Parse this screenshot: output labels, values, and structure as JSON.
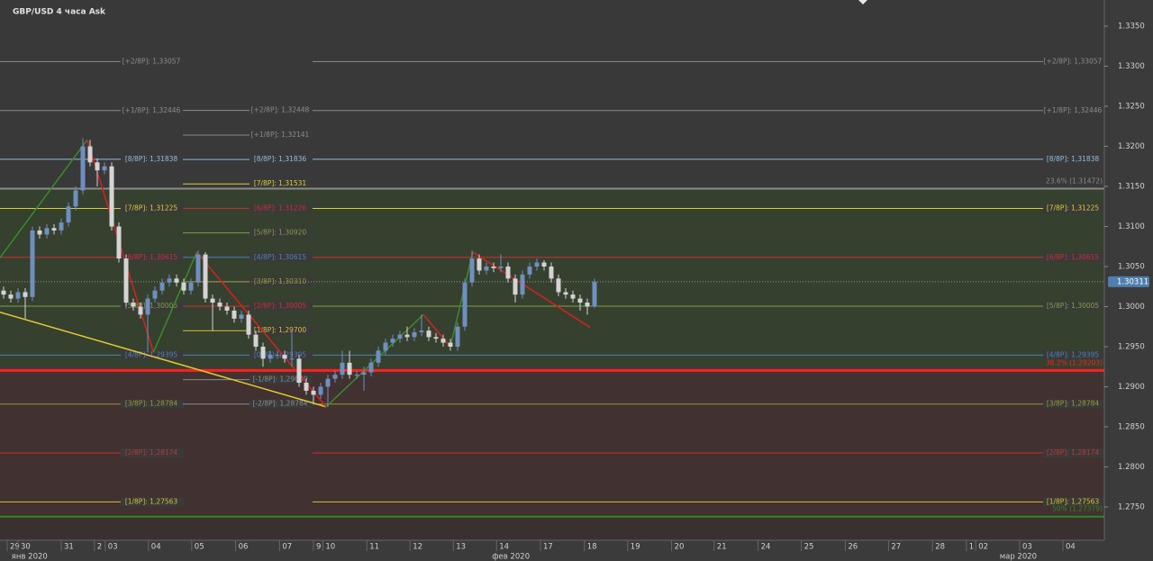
{
  "chart_data": {
    "type": "candlestick",
    "title": "GBP/USD  4 часа Ask",
    "up_color": "#6f8fbf",
    "down_color": "#d4d4d4",
    "xlim": [
      -0.5,
      152.75
    ],
    "ylim": [
      1.27084,
      1.33826
    ],
    "yticks": [
      {
        "value": 1.275,
        "label": "1.2750"
      },
      {
        "value": 1.28,
        "label": "1.2800"
      },
      {
        "value": 1.285,
        "label": "1.2850"
      },
      {
        "value": 1.29,
        "label": "1.2900"
      },
      {
        "value": 1.295,
        "label": "1.2950"
      },
      {
        "value": 1.3,
        "label": "1.3000"
      },
      {
        "value": 1.305,
        "label": "1.3050"
      },
      {
        "value": 1.31,
        "label": "1.3100"
      },
      {
        "value": 1.315,
        "label": "1.3150"
      },
      {
        "value": 1.32,
        "label": "1.3200"
      },
      {
        "value": 1.325,
        "label": "1.3250"
      },
      {
        "value": 1.33,
        "label": "1.3300"
      },
      {
        "value": 1.335,
        "label": "1.3350"
      }
    ],
    "xticks": [
      {
        "value": 0.5,
        "label": "29"
      },
      {
        "value": 2,
        "label": "30"
      },
      {
        "value": 8,
        "label": "31"
      },
      {
        "value": 12.6,
        "label": "2"
      },
      {
        "value": 14.1,
        "label": "03"
      },
      {
        "value": 20.1,
        "label": "04"
      },
      {
        "value": 26.1,
        "label": "05"
      },
      {
        "value": 32.2,
        "label": "06"
      },
      {
        "value": 38.3,
        "label": "07"
      },
      {
        "value": 43,
        "label": "9"
      },
      {
        "value": 44.3,
        "label": "10"
      },
      {
        "value": 50.4,
        "label": "11"
      },
      {
        "value": 56.4,
        "label": "12"
      },
      {
        "value": 62.4,
        "label": "13"
      },
      {
        "value": 68.4,
        "label": "14"
      },
      {
        "value": 74.5,
        "label": "17"
      },
      {
        "value": 80.6,
        "label": "18"
      },
      {
        "value": 86.6,
        "label": "19"
      },
      {
        "value": 92.7,
        "label": "20"
      },
      {
        "value": 98.6,
        "label": "21"
      },
      {
        "value": 104.7,
        "label": "24"
      },
      {
        "value": 110.7,
        "label": "25"
      },
      {
        "value": 116.8,
        "label": "26"
      },
      {
        "value": 122.8,
        "label": "27"
      },
      {
        "value": 128.9,
        "label": "28"
      },
      {
        "value": 133.6,
        "label": "1"
      },
      {
        "value": 134.9,
        "label": "02"
      },
      {
        "value": 141,
        "label": "03"
      },
      {
        "value": 147,
        "label": "04"
      }
    ],
    "months": [
      {
        "value": 3.6,
        "label": "янв 2020"
      },
      {
        "value": 70.4,
        "label": "фев 2020"
      },
      {
        "value": 140.8,
        "label": "мар 2020"
      }
    ],
    "open": [
      1.302,
      1.3015,
      1.301,
      1.3018,
      1.3012,
      1.3095,
      1.309,
      1.3098,
      1.3095,
      1.3105,
      1.3125,
      1.3145,
      1.32,
      1.318,
      1.317,
      1.3175,
      1.31,
      1.306,
      1.3005,
      1.3,
      1.299,
      1.301,
      1.302,
      1.303,
      1.3035,
      1.303,
      1.302,
      1.303,
      1.3065,
      1.301,
      1.3005,
      1.3,
      1.2995,
      1.2985,
      1.299,
      1.2965,
      1.295,
      1.2935,
      1.294,
      1.294,
      1.2935,
      1.2935,
      1.2905,
      1.2895,
      1.289,
      1.29,
      1.291,
      1.2915,
      1.293,
      1.2915,
      1.2915,
      1.2918,
      1.293,
      1.2945,
      1.2955,
      1.296,
      1.2965,
      1.2962,
      1.2968,
      1.297,
      1.2962,
      1.296,
      1.2955,
      1.295,
      1.2975,
      1.303,
      1.306,
      1.3045,
      1.305,
      1.3048,
      1.305,
      1.3035,
      1.3015,
      1.304,
      1.305,
      1.3055,
      1.305,
      1.3035,
      1.3018,
      1.3015,
      1.301,
      1.3005,
      1.3
    ],
    "high": [
      1.3025,
      1.302,
      1.3023,
      1.3023,
      1.31,
      1.31,
      1.3103,
      1.3103,
      1.311,
      1.313,
      1.315,
      1.321,
      1.3208,
      1.3185,
      1.318,
      1.318,
      1.3105,
      1.3065,
      1.301,
      1.3005,
      1.3015,
      1.3025,
      1.3035,
      1.304,
      1.304,
      1.3035,
      1.3035,
      1.307,
      1.3068,
      1.3015,
      1.301,
      1.3005,
      1.3,
      1.2995,
      1.2995,
      1.297,
      1.2955,
      1.2945,
      1.2945,
      1.2945,
      1.297,
      1.294,
      1.291,
      1.29,
      1.2905,
      1.2915,
      1.292,
      1.2945,
      1.2945,
      1.292,
      1.2925,
      1.2935,
      1.295,
      1.296,
      1.2965,
      1.297,
      1.2975,
      1.2973,
      1.299,
      1.2975,
      1.2967,
      1.2965,
      1.296,
      1.298,
      1.3035,
      1.307,
      1.3065,
      1.3055,
      1.3055,
      1.3065,
      1.3055,
      1.304,
      1.3045,
      1.3055,
      1.306,
      1.3058,
      1.3055,
      1.304,
      1.3023,
      1.302,
      1.3015,
      1.301,
      1.3035
    ],
    "low": [
      1.301,
      1.3005,
      1.3005,
      1.2985,
      1.3007,
      1.3085,
      1.3085,
      1.309,
      1.309,
      1.31,
      1.312,
      1.314,
      1.3175,
      1.315,
      1.3165,
      1.3095,
      1.3055,
      1.3,
      1.2995,
      1.2985,
      1.2943,
      1.3005,
      1.3015,
      1.3025,
      1.3025,
      1.3015,
      1.3015,
      1.3025,
      1.3005,
      1.297,
      1.2995,
      1.299,
      1.298,
      1.298,
      1.296,
      1.2945,
      1.2925,
      1.293,
      1.2935,
      1.293,
      1.2925,
      1.29,
      1.289,
      1.288,
      1.2885,
      1.2875,
      1.2905,
      1.291,
      1.291,
      1.291,
      1.2895,
      1.2913,
      1.2925,
      1.294,
      1.295,
      1.2955,
      1.2957,
      1.2957,
      1.2963,
      1.2957,
      1.2955,
      1.295,
      1.2945,
      1.2945,
      1.297,
      1.3025,
      1.304,
      1.304,
      1.3043,
      1.3043,
      1.303,
      1.3005,
      1.301,
      1.3035,
      1.3045,
      1.3045,
      1.303,
      1.3013,
      1.301,
      1.3005,
      1.2995,
      1.299,
      1.2998
    ],
    "close": [
      1.3015,
      1.301,
      1.3018,
      1.3012,
      1.3095,
      1.309,
      1.3098,
      1.3095,
      1.3105,
      1.3125,
      1.3145,
      1.32,
      1.318,
      1.317,
      1.3175,
      1.31,
      1.306,
      1.3005,
      1.3,
      1.299,
      1.301,
      1.302,
      1.303,
      1.3035,
      1.303,
      1.302,
      1.303,
      1.3065,
      1.301,
      1.3005,
      1.3,
      1.2995,
      1.2985,
      1.299,
      1.2965,
      1.295,
      1.2935,
      1.294,
      1.294,
      1.2935,
      1.2935,
      1.2905,
      1.2895,
      1.289,
      1.29,
      1.291,
      1.2915,
      1.293,
      1.2915,
      1.2915,
      1.2918,
      1.293,
      1.2945,
      1.2955,
      1.296,
      1.2965,
      1.2962,
      1.2968,
      1.297,
      1.2962,
      1.296,
      1.2955,
      1.295,
      1.2975,
      1.303,
      1.306,
      1.3045,
      1.305,
      1.3048,
      1.305,
      1.3035,
      1.3015,
      1.304,
      1.305,
      1.3055,
      1.305,
      1.3035,
      1.3018,
      1.3015,
      1.301,
      1.3005,
      1.3,
      1.3031
    ],
    "last_price": 1.30311,
    "murray_levels": [
      {
        "label": "[+2/8P]: 1,33057",
        "value": 1.33057,
        "color": "#8c8c8c"
      },
      {
        "label": "[+1/8P]: 1,32446",
        "value": 1.32446,
        "color": "#8c8c8c"
      },
      {
        "label": "[8/8P]: 1,31838",
        "value": 1.31838,
        "color": "#8fbcdc"
      },
      {
        "label": "[7/8P]: 1,31225",
        "value": 1.31225,
        "color": "#d8d030"
      },
      {
        "label": "[6/8P]: 1,30615",
        "value": 1.30615,
        "color": "#c83030"
      },
      {
        "label": "[5/8P]: 1,30005",
        "value": 1.30005,
        "color": "#7fa040"
      },
      {
        "label": "[4/8P]: 1,29395",
        "value": 1.29395,
        "color": "#4d80b8"
      },
      {
        "label": "[3/8P]: 1,28784",
        "value": 1.28784,
        "color": "#9a9a30"
      },
      {
        "label": "[2/8P]: 1,28174",
        "value": 1.28174,
        "color": "#c83030"
      },
      {
        "label": "[1/8P]: 1,27563",
        "value": 1.27563,
        "color": "#d8c030"
      }
    ],
    "inner_levels": [
      {
        "label": "[+2/8P]: 1,32448",
        "value": 1.32448,
        "color": "#8c8c8c"
      },
      {
        "label": "[+1/8P]: 1,32141",
        "value": 1.32141,
        "color": "#8c8c8c"
      },
      {
        "label": "[8/8P]: 1,31836",
        "value": 1.31836,
        "color": "#8fbcdc"
      },
      {
        "label": "[7/8P]: 1,31531",
        "value": 1.31531,
        "color": "#d8d030"
      },
      {
        "label": "[6/8P]: 1,31226",
        "value": 1.31226,
        "color": "#c83030"
      },
      {
        "label": "[5/8P]: 1,30920",
        "value": 1.3092,
        "color": "#7fa040"
      },
      {
        "label": "[4/8P]: 1,30615",
        "value": 1.30615,
        "color": "#4d80b8"
      },
      {
        "label": "[3/8P]: 1,30310",
        "value": 1.3031,
        "color": "#9a9a30"
      },
      {
        "label": "[2/8P]: 1,30005",
        "value": 1.30005,
        "color": "#c83030"
      },
      {
        "label": "[1/8P]: 1,29700",
        "value": 1.297,
        "color": "#d8c030"
      },
      {
        "label": "[0/8P]: 1,29395",
        "value": 1.29395,
        "color": "#4d80b8"
      },
      {
        "label": "[-1/8P]: 1,29089",
        "value": 1.29089,
        "color": "#8c8c8c"
      },
      {
        "label": "[-2/8P]: 1,28784",
        "value": 1.28784,
        "color": "#8c8c8c"
      }
    ],
    "fib_levels": [
      {
        "label": "23.6% (1.31472)",
        "value": 1.31472,
        "color": "#8a8a8a",
        "zone_color": "#36402f"
      },
      {
        "label": "38.2% (1.29203)",
        "value": 1.29203,
        "color": "#ff2020",
        "zone_color": "#413131"
      },
      {
        "label": "50% (1.27379)",
        "value": 1.27379,
        "color": "#2e8a20",
        "zone_color": "#3b3030"
      }
    ],
    "zigzag": {
      "up_color": "#3a8c2a",
      "down_color": "#d82020",
      "x": [
        -0.5,
        11.6,
        20.8,
        26.8,
        44.75,
        58.25,
        62,
        65.1,
        81.4
      ],
      "y": [
        1.3061,
        1.3208,
        1.2943,
        1.3068,
        1.2875,
        1.299,
        1.295,
        1.3068,
        1.2974
      ]
    },
    "trendline": {
      "color": "#e0c830",
      "x": [
        -0.5,
        44.75
      ],
      "y": [
        1.2993,
        1.2875
      ]
    }
  }
}
